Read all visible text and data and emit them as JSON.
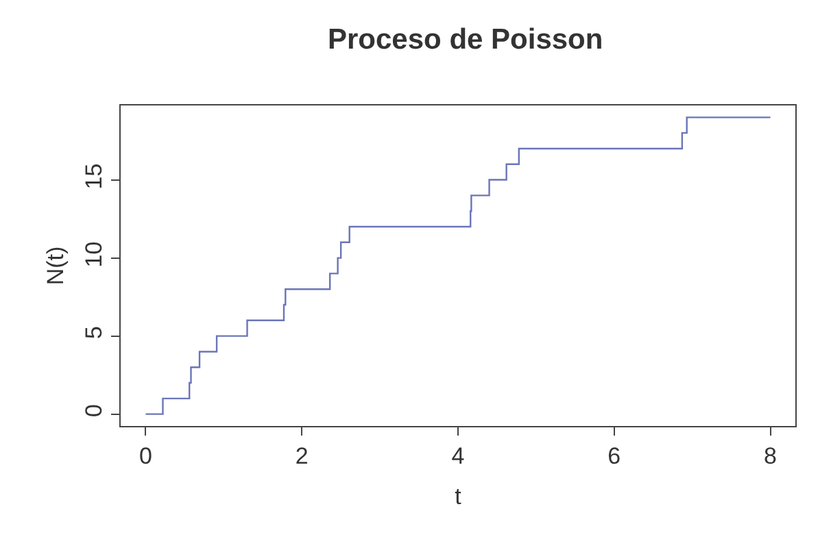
{
  "chart_data": {
    "type": "step",
    "title": "Proceso de Poisson",
    "xlabel": "t",
    "ylabel": "N(t)",
    "x": [
      0,
      0.22,
      0.56,
      0.58,
      0.69,
      0.91,
      1.3,
      1.77,
      1.79,
      2.36,
      2.46,
      2.5,
      2.61,
      4.16,
      4.17,
      4.4,
      4.62,
      4.78,
      6.87,
      6.93,
      8.0
    ],
    "series": [
      {
        "color": "#6a75b8",
        "values": [
          0,
          1,
          2,
          3,
          4,
          5,
          6,
          7,
          8,
          9,
          10,
          11,
          12,
          13,
          14,
          15,
          16,
          17,
          18,
          19,
          19
        ]
      }
    ],
    "xlim": [
      -0.32,
      8.32
    ],
    "ylim": [
      -0.76,
      19.76
    ],
    "xticks": [
      0,
      2,
      4,
      6,
      8
    ],
    "yticks": [
      0,
      5,
      10,
      15
    ],
    "legend": false,
    "marker": "none",
    "line_style": "solid"
  }
}
